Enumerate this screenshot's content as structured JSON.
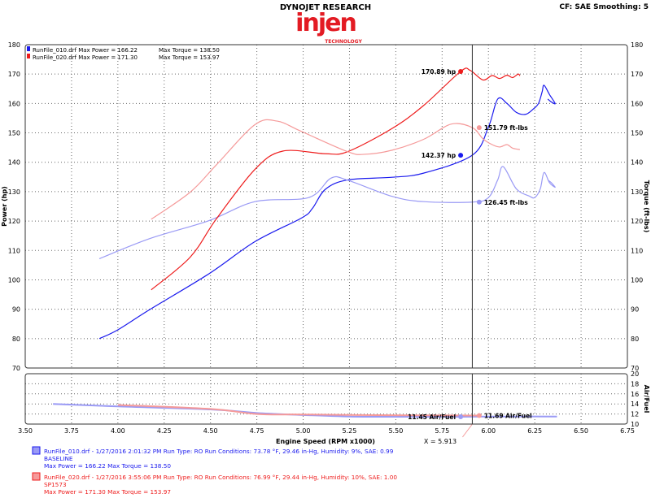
{
  "header": {
    "company": "DYNOJET RESEARCH",
    "logo_text": "injen",
    "logo_sub": "TECHNOLOGY",
    "settings": "CF: SAE  Smoothing: 5"
  },
  "colors": {
    "blue_power": "#1a1aee",
    "blue_torque": "#9a9af5",
    "red_power": "#ee1c1c",
    "red_torque": "#f59a9a",
    "logo": "#e31b23"
  },
  "legend_top": [
    {
      "text": "RunFile_010.drf Max Power = 166.22",
      "torque": "Max Torque = 138.50",
      "color": "#1a1aee"
    },
    {
      "text": "RunFile_020.drf Max Power = 171.30",
      "torque": "Max Torque = 153.97",
      "color": "#ee1c1c"
    }
  ],
  "cursor": {
    "x": 5.913,
    "label": "X = 5.913"
  },
  "chart_data": [
    {
      "type": "line",
      "xlabel": "Engine Speed (RPM x1000)",
      "ylabel": "Power (hp)",
      "y2label": "Torque (ft-lbs)",
      "xlim": [
        3.5,
        6.75
      ],
      "ylim": [
        70,
        180
      ],
      "xticks": [
        "3.50",
        "3.75",
        "4.00",
        "4.25",
        "4.50",
        "4.75",
        "5.00",
        "5.25",
        "5.50",
        "5.75",
        "6.00",
        "6.25",
        "6.50",
        "6.75"
      ],
      "yticks": [
        "70",
        "80",
        "90",
        "100",
        "110",
        "120",
        "130",
        "140",
        "150",
        "160",
        "170",
        "180"
      ],
      "grid": true,
      "legend": "top-left",
      "series": [
        {
          "name": "RunFile_010.drf Power",
          "color": "#1a1aee",
          "x": [
            3.9,
            4.0,
            4.175,
            4.49,
            4.74,
            4.99,
            5.05,
            5.12,
            5.24,
            5.48,
            5.65,
            5.913,
            6.0,
            6.05,
            6.1,
            6.15,
            6.2,
            6.24,
            6.27,
            6.29,
            6.3,
            6.33,
            6.36,
            6.34,
            6.32
          ],
          "y": [
            80,
            83,
            90,
            102,
            113,
            121,
            124.3,
            130.8,
            134,
            134.9,
            136.3,
            142.4,
            152,
            161.5,
            160,
            157,
            156.3,
            158,
            160,
            164,
            166.2,
            163,
            160,
            160.5,
            161.5
          ]
        },
        {
          "name": "RunFile_010.drf Torque",
          "color": "#9a9af5",
          "x": [
            3.9,
            4.175,
            4.49,
            4.74,
            5.03,
            5.15,
            5.24,
            5.48,
            5.65,
            5.913,
            6.0,
            6.05,
            6.08,
            6.15,
            6.22,
            6.25,
            6.28,
            6.3,
            6.33,
            6.36,
            6.34,
            6.32
          ],
          "y": [
            107.2,
            114.1,
            120.1,
            126.6,
            128,
            134.6,
            133.9,
            128.4,
            126.6,
            126.45,
            128,
            134,
            138.5,
            131,
            128.5,
            128,
            131,
            136.5,
            133,
            131.5,
            133,
            134
          ]
        },
        {
          "name": "RunFile_020.drf Power",
          "color": "#ee1c1c",
          "x": [
            4.18,
            4.39,
            4.53,
            4.74,
            4.89,
            5.12,
            5.24,
            5.48,
            5.65,
            5.85,
            5.9,
            5.97,
            6.02,
            6.06,
            6.1,
            6.13,
            6.16,
            6.17
          ],
          "y": [
            96.6,
            107.7,
            120.6,
            137.6,
            143.8,
            142.9,
            143.6,
            151.5,
            159.3,
            170.9,
            171.3,
            168,
            169.5,
            168.5,
            169.6,
            168.8,
            170,
            169.4
          ]
        },
        {
          "name": "RunFile_020.drf Torque",
          "color": "#f59a9a",
          "x": [
            4.18,
            4.39,
            4.53,
            4.74,
            4.86,
            4.99,
            5.24,
            5.33,
            5.48,
            5.65,
            5.8,
            5.913,
            5.97,
            6.02,
            6.06,
            6.1,
            6.13,
            6.17
          ],
          "y": [
            120.6,
            129.8,
            139,
            152.8,
            154,
            150.5,
            143.6,
            142.7,
            144.1,
            147.8,
            153,
            151.8,
            148,
            146,
            145.2,
            146,
            144.8,
            144.3
          ]
        }
      ],
      "annotations": [
        {
          "text": "170.89 hp",
          "x": 5.85,
          "y": 170.89,
          "color": "#ee1c1c",
          "side": "left"
        },
        {
          "text": "151.79 ft-lbs",
          "x": 5.95,
          "y": 151.79,
          "color": "#f59a9a",
          "side": "right"
        },
        {
          "text": "142.37 hp",
          "x": 5.85,
          "y": 142.37,
          "color": "#1a1aee",
          "side": "left"
        },
        {
          "text": "126.45 ft-lbs",
          "x": 5.95,
          "y": 126.45,
          "color": "#9a9af5",
          "side": "right"
        }
      ]
    },
    {
      "type": "line",
      "ylabel": "Air/Fuel",
      "xlim": [
        3.5,
        6.75
      ],
      "ylim": [
        10,
        20
      ],
      "yticks": [
        "10",
        "12",
        "14",
        "16",
        "18",
        "20"
      ],
      "grid": true,
      "series": [
        {
          "name": "RunFile_010.drf Air/Fuel",
          "color": "#9a9af5",
          "x": [
            3.65,
            4.0,
            4.5,
            4.75,
            5.0,
            5.25,
            5.5,
            5.85,
            6.1,
            6.37
          ],
          "y": [
            14,
            13.5,
            12.9,
            12.2,
            11.8,
            11.5,
            11.45,
            11.45,
            11.5,
            11.5
          ]
        },
        {
          "name": "RunFile_020.drf Air/Fuel",
          "color": "#f59a9a",
          "x": [
            4.0,
            4.5,
            4.75,
            5.0,
            5.5,
            5.95
          ],
          "y": [
            13.8,
            13,
            12,
            11.9,
            11.75,
            11.69
          ]
        }
      ],
      "annotations": [
        {
          "text": "11.45 Air/Fuel",
          "x": 5.85,
          "y": 11.45,
          "color": "#9a9af5",
          "side": "left"
        },
        {
          "text": "11.69 Air/Fuel",
          "x": 5.95,
          "y": 11.69,
          "color": "#f59a9a",
          "side": "right"
        }
      ]
    }
  ],
  "footer": [
    {
      "line1": "RunFile_010.drf - 1/27/2016 2:01:32 PM  Run Type: RO  Run Conditions: 73.78 °F, 29.46 in-Hg,  Humidity:  9%, SAE: 0.99",
      "line2": "BASELINE",
      "line3": "Max Power = 166.22  Max Torque = 138.50",
      "color": "#1a1aee"
    },
    {
      "line1": "RunFile_020.drf - 1/27/2016 3:55:06 PM  Run Type: RO  Run Conditions: 76.99 °F, 29.44 in-Hg,  Humidity:  10%, SAE: 1.00",
      "line2": "SP1573",
      "line3": "Max Power = 171.30  Max Torque = 153.97",
      "color": "#ee1c1c"
    }
  ]
}
